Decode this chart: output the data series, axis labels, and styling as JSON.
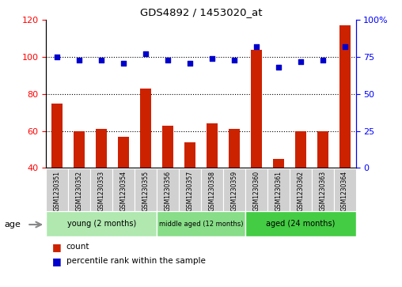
{
  "title": "GDS4892 / 1453020_at",
  "samples": [
    "GSM1230351",
    "GSM1230352",
    "GSM1230353",
    "GSM1230354",
    "GSM1230355",
    "GSM1230356",
    "GSM1230357",
    "GSM1230358",
    "GSM1230359",
    "GSM1230360",
    "GSM1230361",
    "GSM1230362",
    "GSM1230363",
    "GSM1230364"
  ],
  "counts": [
    75,
    60,
    61,
    57,
    83,
    63,
    54,
    64,
    61,
    104,
    45,
    60,
    60,
    117
  ],
  "percentiles": [
    75,
    73,
    73,
    71,
    77,
    73,
    71,
    74,
    73,
    82,
    68,
    72,
    73,
    82
  ],
  "ylim_left": [
    40,
    120
  ],
  "ylim_right": [
    0,
    100
  ],
  "yticks_left": [
    40,
    60,
    80,
    100,
    120
  ],
  "yticks_right": [
    0,
    25,
    50,
    75,
    100
  ],
  "groups": [
    {
      "label": "young (2 months)",
      "start": 0,
      "end": 4,
      "color": "#b0e8b0"
    },
    {
      "label": "middle aged (12 months)",
      "start": 5,
      "end": 8,
      "color": "#88dd88"
    },
    {
      "label": "aged (24 months)",
      "start": 9,
      "end": 13,
      "color": "#44cc44"
    }
  ],
  "bar_color": "#cc2200",
  "dot_color": "#0000cc",
  "bar_width": 0.5,
  "age_label": "age",
  "legend_count": "count",
  "legend_percentile": "percentile rank within the sample"
}
